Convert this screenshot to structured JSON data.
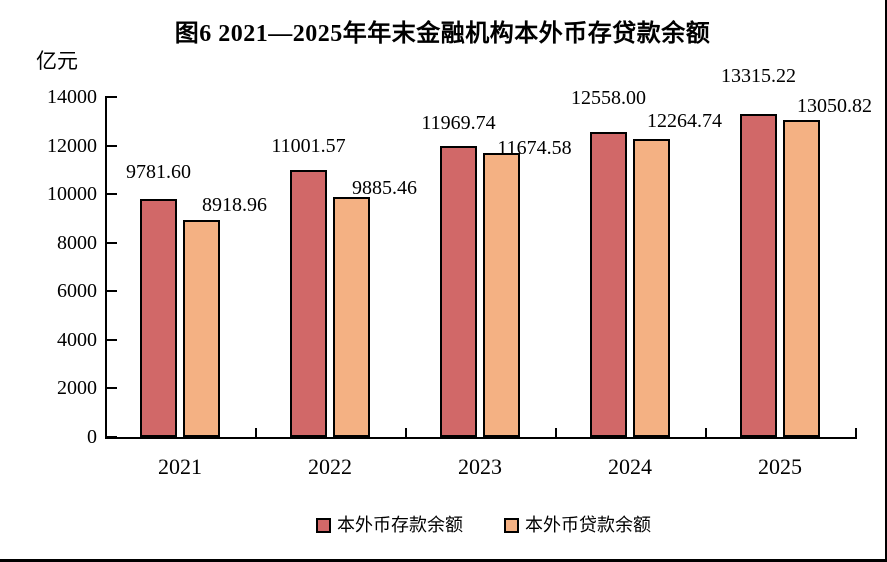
{
  "figure": {
    "title": "图6  2021—2025年年末金融机构本外币存贷款余额",
    "unit_label": "亿元"
  },
  "chart_data": {
    "type": "bar",
    "title": "图6  2021—2025年年末金融机构本外币存贷款余额",
    "unit": "亿元",
    "categories": [
      "2021",
      "2022",
      "2023",
      "2024",
      "2025"
    ],
    "series": [
      {
        "name": "本外币存款余额",
        "color": "#D16868",
        "values": [
          9781.6,
          11001.57,
          11969.74,
          12558.0,
          13315.22
        ],
        "labels": [
          "9781.60",
          "11001.57",
          "11969.74",
          "12558.00",
          "13315.22"
        ]
      },
      {
        "name": "本外币贷款余额",
        "color": "#F4B183",
        "values": [
          8918.96,
          9885.46,
          11674.58,
          12264.74,
          13050.82
        ],
        "labels": [
          "8918.96",
          "9885.46",
          "11674.58",
          "12264.74",
          "13050.82"
        ]
      }
    ],
    "ylim": [
      0,
      14000
    ],
    "ytick_step": 2000,
    "yticks": [
      0,
      2000,
      4000,
      6000,
      8000,
      10000,
      12000,
      14000
    ],
    "grid": false,
    "legend_position": "bottom",
    "bar_border_color": "#000000",
    "background_color": "#FFFFFF"
  }
}
